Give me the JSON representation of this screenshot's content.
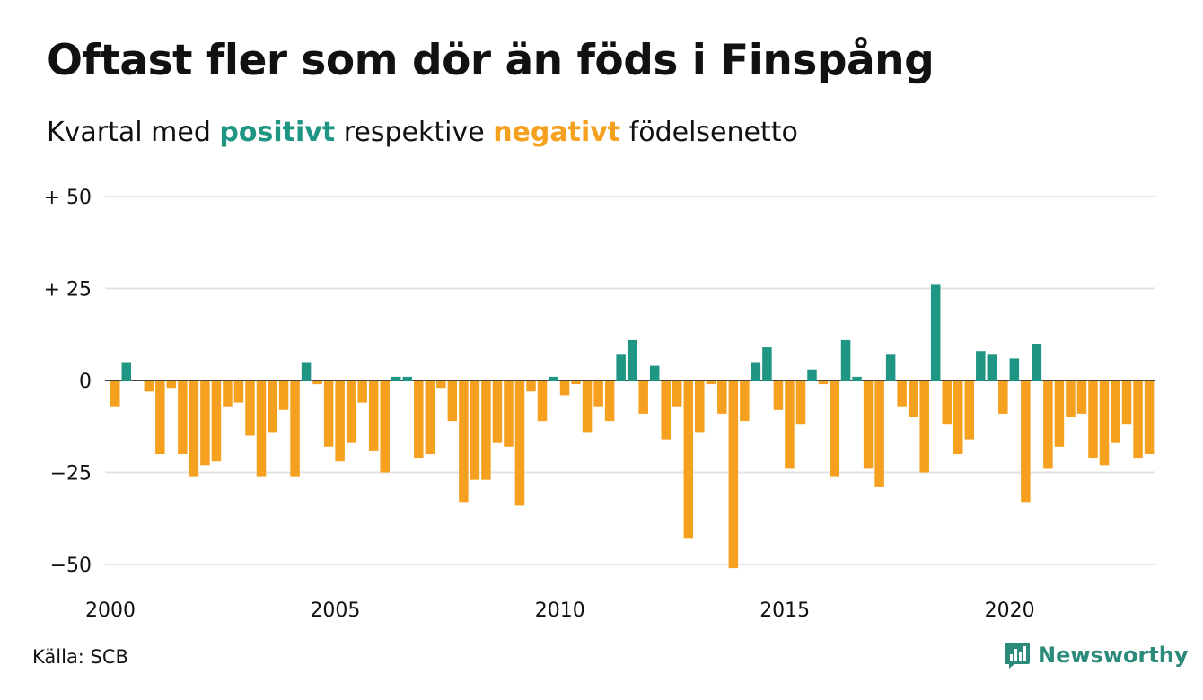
{
  "header": {
    "title": "Oftast fler som dör än föds i Finspång",
    "subtitle_pre": "Kvartal med ",
    "subtitle_pos": "positivt",
    "subtitle_mid": " respektive ",
    "subtitle_neg": "negativt",
    "subtitle_post": " födelsenetto"
  },
  "footer": {
    "source": "Källa: SCB",
    "brand": "Newsworthy"
  },
  "colors": {
    "positive": "#1f9583",
    "negative": "#f5a11f",
    "grid": "#e3e3e3",
    "brand": "#2b8a79"
  },
  "chart_data": {
    "type": "bar",
    "start_year": 2000,
    "period": "quarter",
    "values": [
      -7,
      5,
      0,
      -3,
      -20,
      -2,
      -20,
      -26,
      -23,
      -22,
      -7,
      -6,
      -15,
      -26,
      -14,
      -8,
      -26,
      5,
      -1,
      -18,
      -22,
      -17,
      -6,
      -19,
      -25,
      1,
      1,
      -21,
      -20,
      -2,
      -11,
      -33,
      -27,
      -27,
      -17,
      -18,
      -34,
      -3,
      -11,
      1,
      -4,
      -1,
      -14,
      -7,
      -11,
      7,
      11,
      -9,
      4,
      -16,
      -7,
      -43,
      -14,
      -1,
      -9,
      -51,
      -11,
      5,
      9,
      -8,
      -24,
      -12,
      3,
      -1,
      -26,
      11,
      1,
      -24,
      -29,
      7,
      -7,
      -10,
      -25,
      26,
      -12,
      -20,
      -16,
      8,
      7,
      -9,
      6,
      -33,
      10,
      -24,
      -18,
      -10,
      -9,
      -21,
      -23,
      -17,
      -12,
      -21,
      -20
    ],
    "y_ticks": [
      50,
      25,
      0,
      -25,
      -50
    ],
    "y_tick_labels": [
      "+ 50",
      "+ 25",
      "0",
      "−25",
      "−50"
    ],
    "x_ticks": [
      2000,
      2005,
      2010,
      2015,
      2020
    ],
    "ylim": [
      -50,
      50
    ],
    "grid": true
  }
}
